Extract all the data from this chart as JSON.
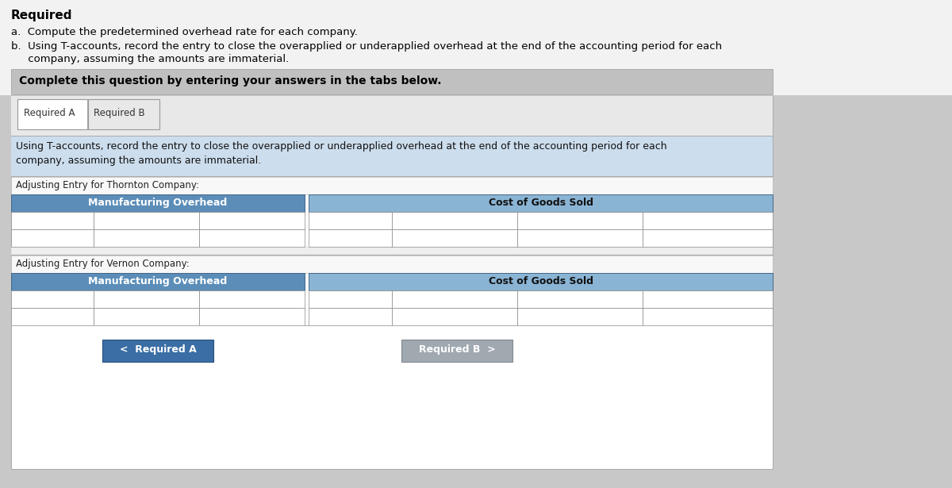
{
  "overall_bg": "#c8c8c8",
  "top_area_bg": "#f2f2f2",
  "complete_box_bg": "#c0c0c0",
  "white": "#ffffff",
  "tab_area_bg": "#e8e8e8",
  "blue_header": "#5b8db8",
  "light_blue_header": "#8ab4d4",
  "instruction_bg": "#ccdded",
  "content_bg": "#f5f5f5",
  "cell_border": "#888888",
  "btn_blue": "#3a6ea5",
  "btn_gray": "#a0a8b0",
  "title_text": "Required",
  "line_a": "a.  Compute the predetermined overhead rate for each company.",
  "line_b1": "b.  Using T-accounts, record the entry to close the overapplied or underapplied overhead at the end of the accounting period for each",
  "line_b2": "     company, assuming the amounts are immaterial.",
  "complete_text": "Complete this question by entering your answers in the tabs below.",
  "tab_a": "Required A",
  "tab_b": "Required B",
  "instruction1": "Using T-accounts, record the entry to close the overapplied or underapplied overhead at the end of the accounting period for each",
  "instruction2": "company, assuming the amounts are immaterial.",
  "thornton_label": "Adjusting Entry for Thornton Company:",
  "mfg_overhead": "Manufacturing Overhead",
  "cost_goods_sold": "Cost of Goods Sold",
  "vernon_label": "Adjusting Entry for Vernon Company:",
  "btn_req_a": "<  Required A",
  "btn_req_b": "Required B  >"
}
